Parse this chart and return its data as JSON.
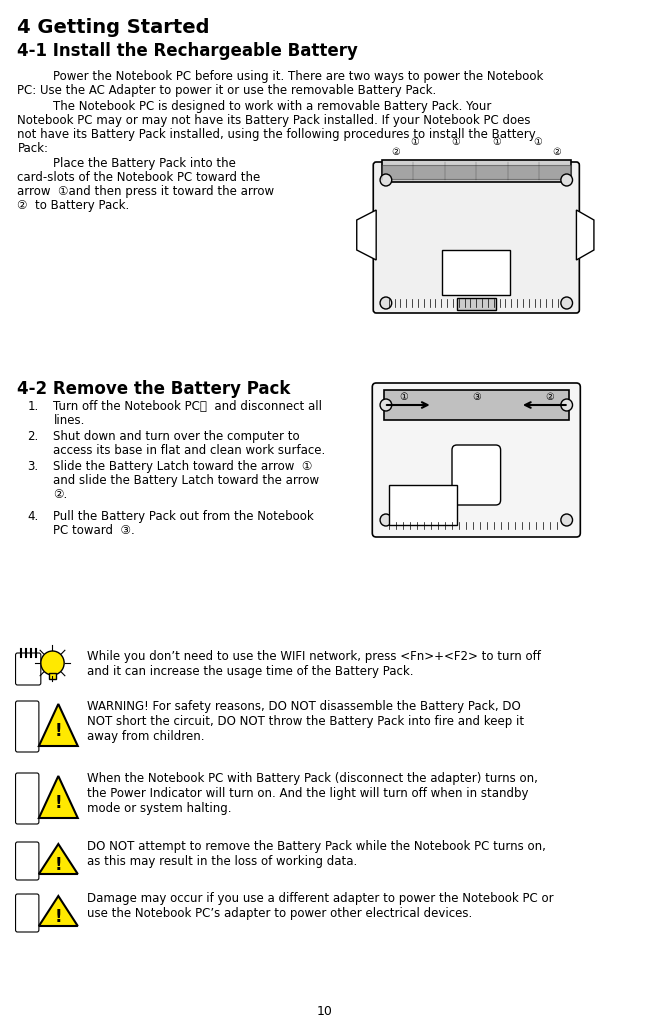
{
  "title1": "4 Getting Started",
  "title2": "4-1 Install the Rechargeable Battery",
  "title3": "4-2 Remove the Battery Pack",
  "body_font_size": 8.5,
  "title_font_size": 12,
  "subtitle_font_size": 11,
  "bg_color": "#ffffff",
  "text_color": "#000000",
  "page_number": "10",
  "para1": "Power the Notebook PC before using it. There are two ways to power the Notebook\nPC: Use the AC Adapter to power it or use the removable Battery Pack.",
  "para2": "The Notebook PC is designed to work with a removable Battery Pack. Your\nNotebook PC may or may not have its Battery Pack installed. If your Notebook PC does\nnot have its Battery Pack installed, using the following procedures to install the Battery\nPack:",
  "para3": "Place the Battery Pack into the\ncard-slots of the Notebook PC toward the\narrow ①and then press it toward the arrow\n②  to Battery Pack.",
  "list_items": [
    "Turn off the Notebook PC，  and disconnect all\nlines.",
    "Shut down and turn over the computer to\naccess its base in flat and clean work surface.",
    "Slide the Battery Latch toward the arrow  ①\nand slide the Battery Latch toward the arrow\n②.",
    "Pull the Battery Pack out from the Notebook\nPC toward  ③."
  ],
  "note1": "While you don’t need to use the WIFI network, press <Fn>+<F2> to turn off\nand it can increase the usage time of the Battery Pack.",
  "note2": "WARNING! For safety reasons, DO NOT disassemble the Battery Pack, DO\nNOT short the circuit, DO NOT throw the Battery Pack into fire and keep it\naway from children.",
  "note3": "When the Notebook PC with Battery Pack (disconnect the adapter) turns on,\nthe Power Indicator will turn on. And the light will turn off when in standby\nmode or system halting.",
  "note4": "DO NOT attempt to remove the Battery Pack while the Notebook PC turns on,\nas this may result in the loss of working data.",
  "note5": "Damage may occur if you use a different adapter to power the Notebook PC or\nuse the Notebook PC’s adapter to power other electrical devices."
}
